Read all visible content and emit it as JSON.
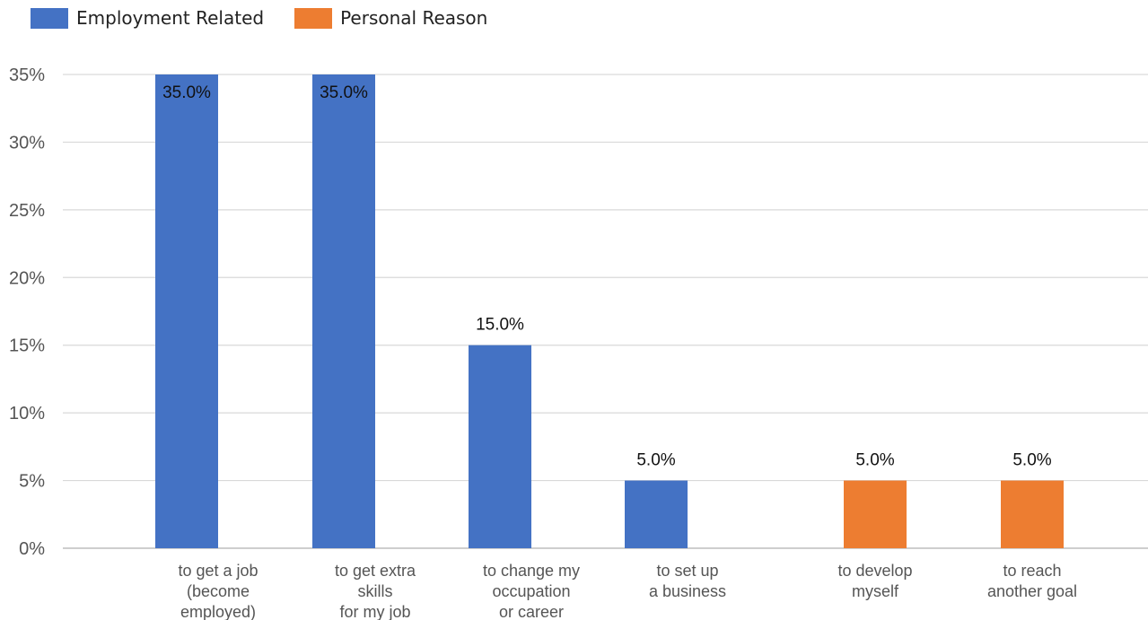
{
  "legend": [
    {
      "label": "Employment Related",
      "color": "#4472C4"
    },
    {
      "label": "Personal Reason",
      "color": "#ED7D31"
    }
  ],
  "chart_data": {
    "type": "bar",
    "title": "",
    "xlabel": "",
    "ylabel": "",
    "ylim": [
      0,
      35
    ],
    "yticks": [
      0,
      5,
      10,
      15,
      20,
      25,
      30,
      35
    ],
    "ytick_labels": [
      "0%",
      "5%",
      "10%",
      "15%",
      "20%",
      "25%",
      "30%",
      "35%"
    ],
    "grid": true,
    "legend_position": "top-left",
    "categories": [
      [
        "to get a job",
        "(become",
        "employed)"
      ],
      [
        "to get extra",
        "skills",
        "for my job"
      ],
      [
        "to change my",
        "occupation",
        "or career"
      ],
      [
        "to set up",
        "a business"
      ],
      [
        "to develop",
        "myself"
      ],
      [
        "to reach",
        "another goal"
      ]
    ],
    "series": [
      {
        "name": "Employment Related",
        "color": "#4472C4",
        "values": [
          35,
          35,
          15,
          5,
          null,
          null
        ],
        "labels": [
          "35.0%",
          "35.0%",
          "15.0%",
          "5.0%",
          "",
          ""
        ]
      },
      {
        "name": "Personal Reason",
        "color": "#ED7D31",
        "values": [
          null,
          null,
          null,
          null,
          5,
          5
        ],
        "labels": [
          "",
          "",
          "",
          "",
          "5.0%",
          "5.0%"
        ]
      }
    ]
  }
}
